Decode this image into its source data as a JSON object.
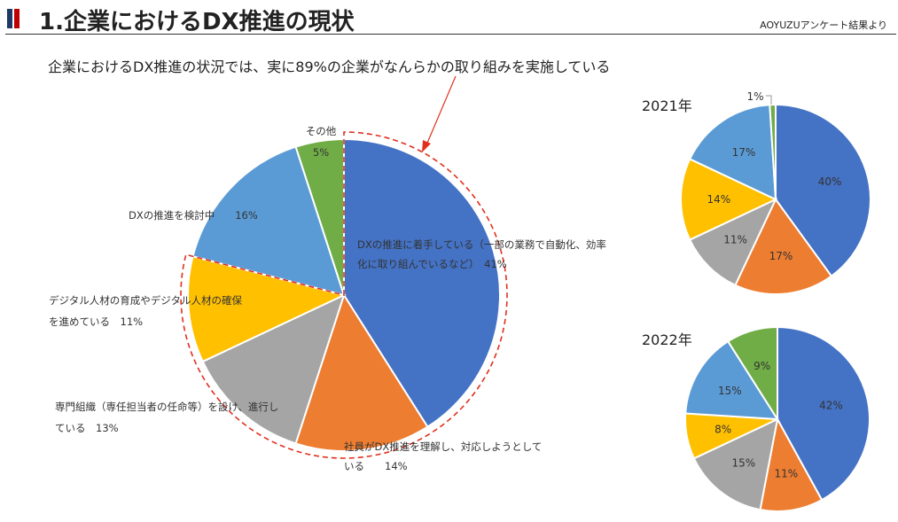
{
  "header": {
    "title": "1.企業におけるDX推進の現状",
    "source": "AOYUZUアンケート結果より",
    "subtitle": "企業におけるDX推進の状況では、実に89%の企業がなんらかの取り組みを実施している"
  },
  "colors": {
    "accent_bar_1": "#1f3864",
    "accent_bar_2": "#c00000",
    "highlight_ring": "#e0301e"
  },
  "chart_data": [
    {
      "type": "pie",
      "title": "",
      "labels": [
        "DXの推進に着手している（一部の業務で自動化、効率化に取り組んでいるなど）",
        "社員がDX推進を理解し、対応しようとしている",
        "専門組織（専任担当者の任命等）を設け、進行している",
        "デジタル人材の育成やデジタル人材の確保を進めている",
        "DXの推進を検討中",
        "その他"
      ],
      "values": [
        41,
        14,
        13,
        11,
        16,
        5
      ],
      "colors": [
        "#4472c4",
        "#ed7d31",
        "#a5a5a5",
        "#ffc000",
        "#5b9bd5",
        "#70ad47"
      ],
      "label_lines": [
        [
          "DXの推進に着手している（一部の業務で自動化、効率",
          "化に取り組んでいるなど）　41%"
        ],
        [
          "社員がDX推進を理解し、対応しようとして",
          "いる　　14%"
        ],
        [
          "専門組織（専任担当者の任命等）を設け、進行し",
          "ている　13%"
        ],
        [
          "デジタル人材の育成やデジタル人材の確保",
          "を進めている　11%"
        ],
        [
          "DXの推進を検討中　　16%"
        ],
        [
          "その他",
          "5%"
        ]
      ]
    },
    {
      "type": "pie",
      "title": "2021年",
      "values": [
        40,
        17,
        11,
        14,
        17,
        1
      ],
      "colors": [
        "#4472c4",
        "#ed7d31",
        "#a5a5a5",
        "#ffc000",
        "#5b9bd5",
        "#70ad47"
      ],
      "value_labels": [
        "40%",
        "17%",
        "11%",
        "14%",
        "17%",
        "1%"
      ]
    },
    {
      "type": "pie",
      "title": "2022年",
      "values": [
        42,
        11,
        15,
        8,
        15,
        9
      ],
      "colors": [
        "#4472c4",
        "#ed7d31",
        "#a5a5a5",
        "#ffc000",
        "#5b9bd5",
        "#70ad47"
      ],
      "value_labels": [
        "42%",
        "11%",
        "15%",
        "8%",
        "15%",
        "9%"
      ]
    }
  ]
}
